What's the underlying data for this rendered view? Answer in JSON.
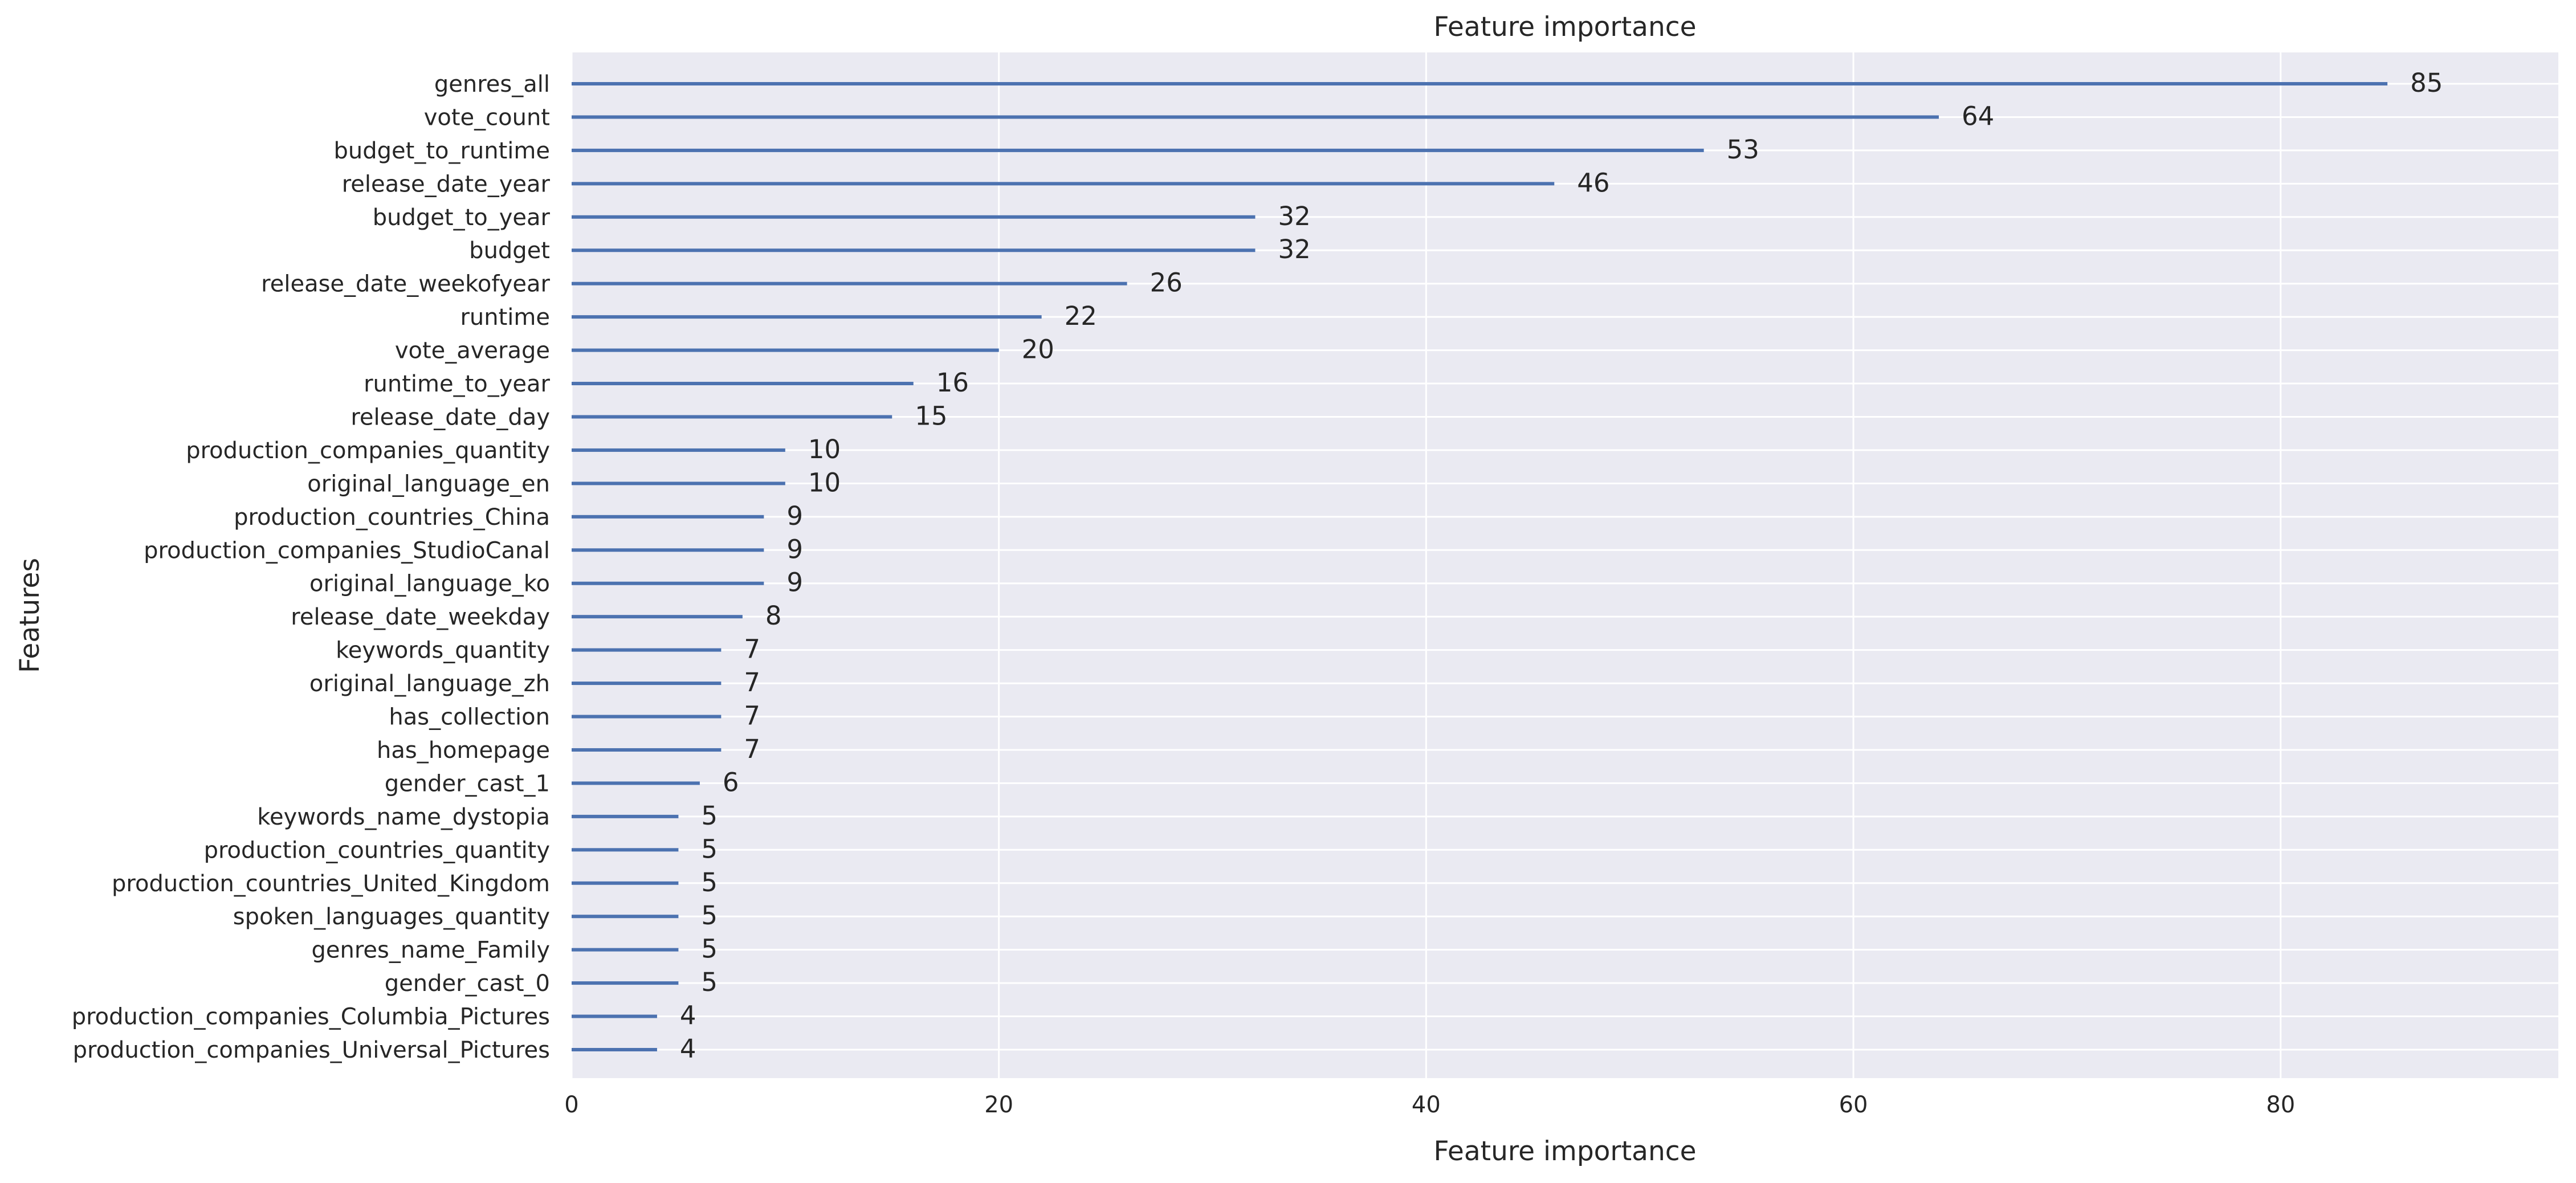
{
  "chart_data": {
    "type": "bar",
    "orientation": "horizontal",
    "title": "Feature importance",
    "xlabel": "Feature importance",
    "ylabel": "Features",
    "xlim": [
      0,
      93
    ],
    "xticks": [
      0,
      20,
      40,
      60,
      80
    ],
    "grid": true,
    "background": "#eaeaf2",
    "bar_color": "#4c72b0",
    "categories": [
      "genres_all",
      "vote_count",
      "budget_to_runtime",
      "release_date_year",
      "budget_to_year",
      "budget",
      "release_date_weekofyear",
      "runtime",
      "vote_average",
      "runtime_to_year",
      "release_date_day",
      "production_companies_quantity",
      "original_language_en",
      "production_countries_China",
      "production_companies_StudioCanal",
      "original_language_ko",
      "release_date_weekday",
      "keywords_quantity",
      "original_language_zh",
      "has_collection",
      "has_homepage",
      "gender_cast_1",
      "keywords_name_dystopia",
      "production_countries_quantity",
      "production_countries_United_Kingdom",
      "spoken_languages_quantity",
      "genres_name_Family",
      "gender_cast_0",
      "production_companies_Columbia_Pictures",
      "production_companies_Universal_Pictures"
    ],
    "values": [
      85,
      64,
      53,
      46,
      32,
      32,
      26,
      22,
      20,
      16,
      15,
      10,
      10,
      9,
      9,
      9,
      8,
      7,
      7,
      7,
      7,
      6,
      5,
      5,
      5,
      5,
      5,
      5,
      4,
      4
    ]
  }
}
